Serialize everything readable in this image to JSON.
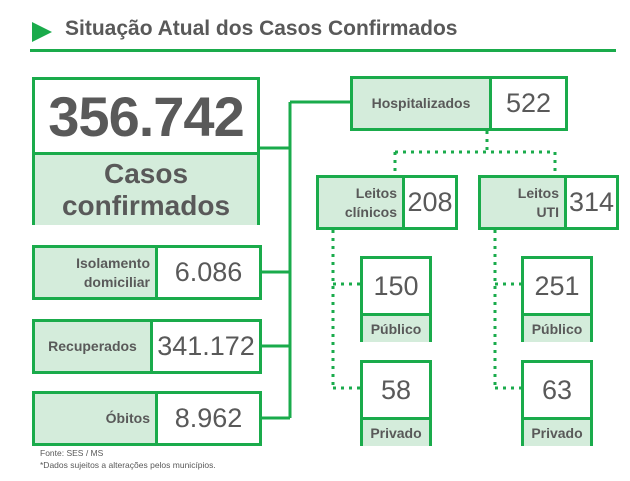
{
  "title": "Situação Atual dos Casos Confirmados",
  "colors": {
    "accent": "#1aab4b",
    "fill": "#d4ecdb",
    "text": "#595959"
  },
  "total": {
    "value": "356.742",
    "label_line1": "Casos",
    "label_line2": "confirmados"
  },
  "isolamento": {
    "label_line1": "Isolamento",
    "label_line2": "domiciliar",
    "value": "6.086"
  },
  "recuperados": {
    "label": "Recuperados",
    "value": "341.172"
  },
  "obitos": {
    "label": "Óbitos",
    "value": "8.962"
  },
  "hospitalizados": {
    "label": "Hospitalizados",
    "value": "522"
  },
  "leitos_clinicos": {
    "label_line1": "Leitos",
    "label_line2": "clínicos",
    "value": "208"
  },
  "leitos_uti": {
    "label_line1": "Leitos",
    "label_line2": "UTI",
    "value": "314"
  },
  "clinicos_publico": {
    "value": "150",
    "label": "Público"
  },
  "clinicos_privado": {
    "value": "58",
    "label": "Privado"
  },
  "uti_publico": {
    "value": "251",
    "label": "Público"
  },
  "uti_privado": {
    "value": "63",
    "label": "Privado"
  },
  "footer": {
    "source": "Fonte: SES / MS",
    "note": "*Dados sujeitos a alterações pelos municípios."
  }
}
